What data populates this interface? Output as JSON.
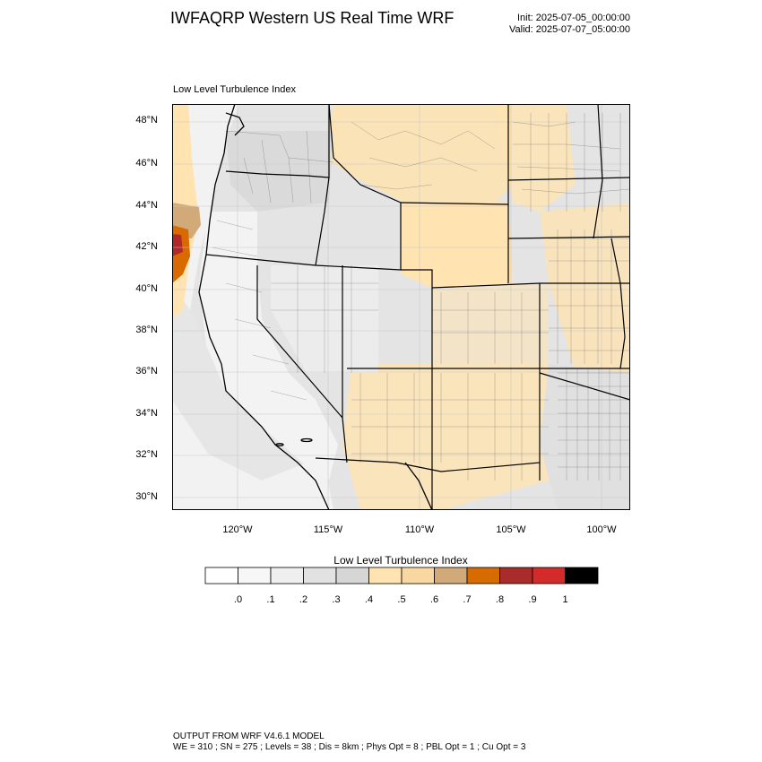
{
  "header": {
    "title": "IWFAQRP Western US Real Time WRF",
    "init": "Init: 2025-07-05_00:00:00",
    "valid": "Valid: 2025-07-07_05:00:00"
  },
  "map": {
    "subtitle": "Low Level Turbulence Index",
    "lat_labels": [
      "48°N",
      "46°N",
      "44°N",
      "42°N",
      "40°N",
      "38°N",
      "36°N",
      "34°N",
      "32°N",
      "30°N"
    ],
    "lon_labels": [
      "120°W",
      "115°W",
      "110°W",
      "105°W",
      "100°W"
    ],
    "field_colors": {
      "ocean_low": "#f4f4f4",
      "ocean_mid": "#e6e6e6",
      "land_low": "#dcdcdc",
      "land_mid": "#f0f0f0",
      "high": "#ffe3b0",
      "coast_peak": "#d96a00",
      "coast_max": "#b02828"
    }
  },
  "colorbar": {
    "title": "Low Level Turbulence Index",
    "tick_labels": [
      ".0",
      ".1",
      ".2",
      ".3",
      ".4",
      ".5",
      ".6",
      ".7",
      ".8",
      ".9",
      "1"
    ],
    "colors": [
      "#ffffff",
      "#f7f7f7",
      "#efefef",
      "#e2e2e2",
      "#d6d6d6",
      "#ffe3b0",
      "#f8d8a0",
      "#d2aa7a",
      "#d66b00",
      "#aa2b2b",
      "#d42a2a",
      "#000000"
    ]
  },
  "footer": {
    "line1": "OUTPUT FROM WRF V4.6.1 MODEL",
    "line2": "WE = 310 ; SN = 275 ; Levels = 38 ; Dis = 8km ; Phys Opt = 8 ; PBL Opt = 1 ; Cu Opt = 3"
  }
}
